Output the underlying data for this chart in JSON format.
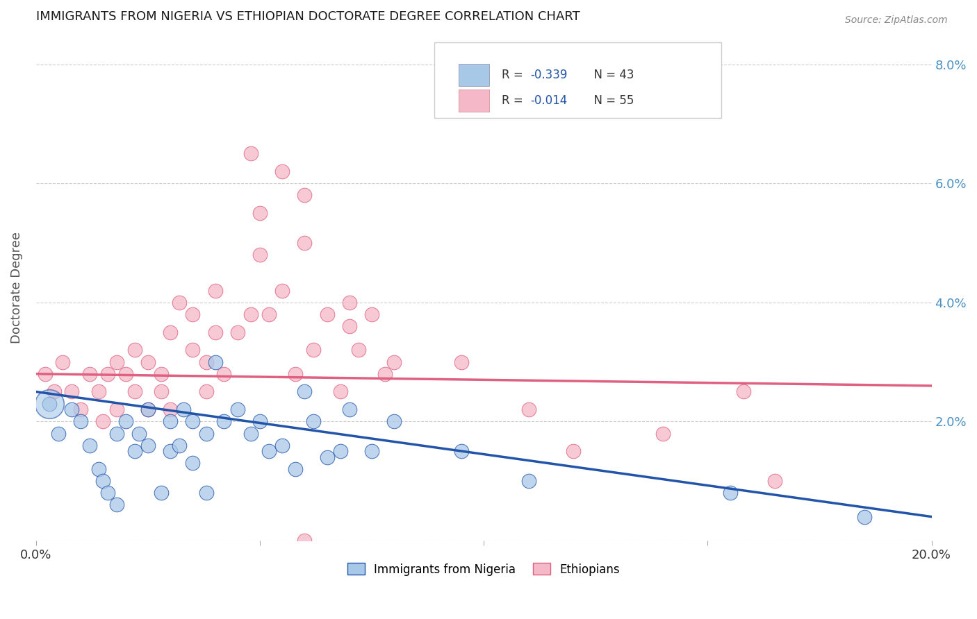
{
  "title": "IMMIGRANTS FROM NIGERIA VS ETHIOPIAN DOCTORATE DEGREE CORRELATION CHART",
  "source": "Source: ZipAtlas.com",
  "ylabel": "Doctorate Degree",
  "xlim": [
    0.0,
    0.2
  ],
  "ylim": [
    0.0,
    0.085
  ],
  "legend_line1": "R = -0.339    N = 43",
  "legend_line2": "R = -0.014    N = 55",
  "color_nigeria": "#A8C8E8",
  "color_ethiopia": "#F5B8C8",
  "color_nigeria_line": "#2255AA",
  "color_ethiopia_line": "#E06080",
  "background_color": "#FFFFFF",
  "grid_color": "#CCCCCC",
  "title_color": "#1a1a1a",
  "axis_label_color": "#555555",
  "tick_label_color_right": "#4A90C4",
  "nigeria_points_x": [
    0.003,
    0.005,
    0.008,
    0.01,
    0.012,
    0.014,
    0.015,
    0.016,
    0.018,
    0.018,
    0.02,
    0.022,
    0.023,
    0.025,
    0.025,
    0.028,
    0.03,
    0.03,
    0.032,
    0.033,
    0.035,
    0.035,
    0.038,
    0.038,
    0.04,
    0.042,
    0.045,
    0.048,
    0.05,
    0.052,
    0.055,
    0.058,
    0.06,
    0.062,
    0.065,
    0.068,
    0.07,
    0.075,
    0.08,
    0.095,
    0.11,
    0.155,
    0.185
  ],
  "nigeria_points_y": [
    0.023,
    0.018,
    0.022,
    0.02,
    0.016,
    0.012,
    0.01,
    0.008,
    0.006,
    0.018,
    0.02,
    0.015,
    0.018,
    0.022,
    0.016,
    0.008,
    0.02,
    0.015,
    0.016,
    0.022,
    0.02,
    0.013,
    0.008,
    0.018,
    0.03,
    0.02,
    0.022,
    0.018,
    0.02,
    0.015,
    0.016,
    0.012,
    0.025,
    0.02,
    0.014,
    0.015,
    0.022,
    0.015,
    0.02,
    0.015,
    0.01,
    0.008,
    0.004
  ],
  "ethiopia_points_x": [
    0.002,
    0.004,
    0.006,
    0.008,
    0.01,
    0.012,
    0.014,
    0.015,
    0.016,
    0.018,
    0.018,
    0.02,
    0.022,
    0.022,
    0.025,
    0.025,
    0.028,
    0.028,
    0.03,
    0.03,
    0.032,
    0.035,
    0.035,
    0.038,
    0.038,
    0.04,
    0.04,
    0.042,
    0.045,
    0.048,
    0.05,
    0.05,
    0.052,
    0.055,
    0.058,
    0.06,
    0.062,
    0.065,
    0.068,
    0.07,
    0.072,
    0.075,
    0.078,
    0.08,
    0.095,
    0.11,
    0.12,
    0.14,
    0.158,
    0.165,
    0.048,
    0.055,
    0.06,
    0.07,
    0.06
  ],
  "ethiopia_points_y": [
    0.028,
    0.025,
    0.03,
    0.025,
    0.022,
    0.028,
    0.025,
    0.02,
    0.028,
    0.022,
    0.03,
    0.028,
    0.032,
    0.025,
    0.03,
    0.022,
    0.028,
    0.025,
    0.035,
    0.022,
    0.04,
    0.032,
    0.038,
    0.025,
    0.03,
    0.042,
    0.035,
    0.028,
    0.035,
    0.038,
    0.048,
    0.055,
    0.038,
    0.042,
    0.028,
    0.058,
    0.032,
    0.038,
    0.025,
    0.036,
    0.032,
    0.038,
    0.028,
    0.03,
    0.03,
    0.022,
    0.015,
    0.018,
    0.025,
    0.01,
    0.065,
    0.062,
    0.05,
    0.04,
    0.0
  ],
  "nigeria_trend_x": [
    0.0,
    0.2
  ],
  "nigeria_trend_y": [
    0.025,
    0.004
  ],
  "ethiopia_trend_x": [
    0.0,
    0.2
  ],
  "ethiopia_trend_y": [
    0.028,
    0.026
  ]
}
